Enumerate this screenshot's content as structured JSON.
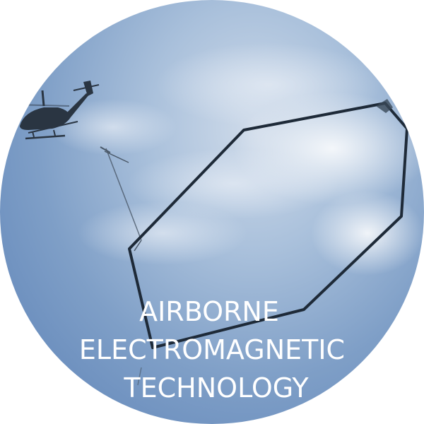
{
  "image": {
    "subject": "helicopter towing a hexagonal electromagnetic loop",
    "caption_lines": [
      "AIRBORNE",
      "ELECTROMAGNETIC",
      "TECHNOLOGY"
    ]
  },
  "colors": {
    "sky_light": "#cfdbea",
    "sky_mid": "#a9c0db",
    "sky_dark": "#5a80b6",
    "loop": "#1e2a38",
    "helicopter": "#2a3542",
    "caption": "#ffffff"
  },
  "icons": {
    "helicopter": "helicopter-icon",
    "loop": "hexagon-loop-icon"
  }
}
